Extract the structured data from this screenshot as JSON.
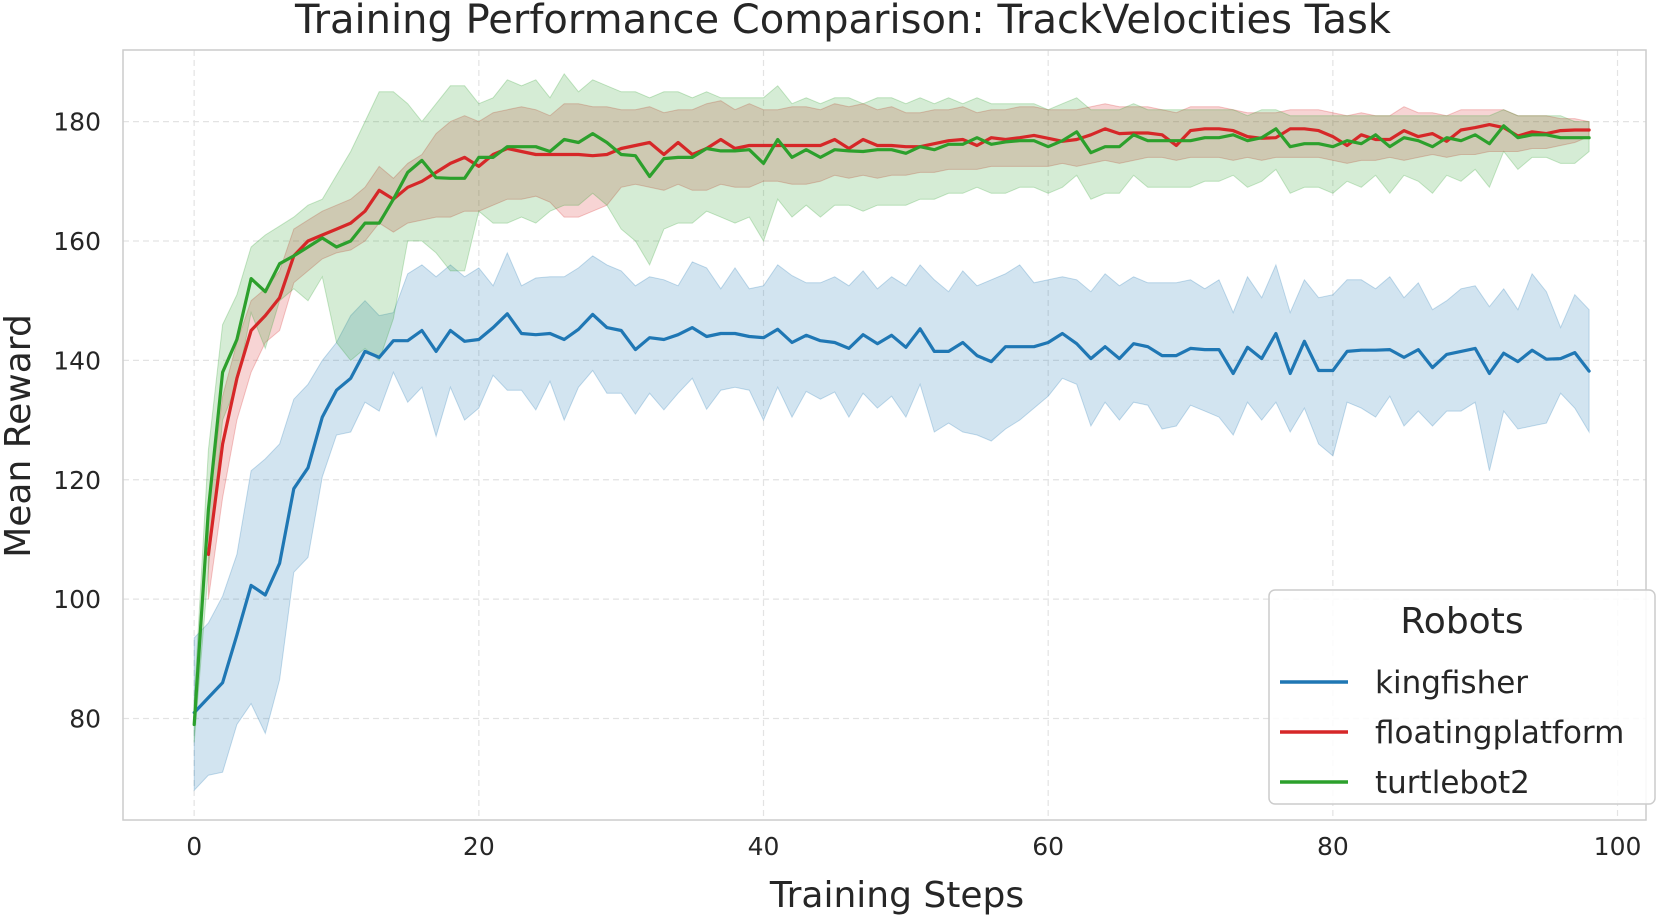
{
  "chart_data": {
    "type": "line",
    "title": "Training Performance Comparison: TrackVelocities Task",
    "xlabel": "Training Steps",
    "ylabel": "Mean Reward",
    "xlim": [
      -5,
      102
    ],
    "ylim": [
      63,
      192
    ],
    "xticks": [
      0,
      20,
      40,
      60,
      80,
      100
    ],
    "yticks": [
      80,
      100,
      120,
      140,
      160,
      180
    ],
    "grid": true,
    "legend": {
      "title": "Robots",
      "position": "lower-right"
    },
    "series": [
      {
        "name": "kingfisher",
        "color": "#1f77b4",
        "x_start": 0,
        "values": [
          81,
          83.5,
          86,
          94,
          102.3,
          100.7,
          106,
          118.5,
          122,
          130.5,
          135,
          137,
          141.5,
          140.5,
          143.3,
          143.3,
          145,
          141.5,
          145,
          143.2,
          143.5,
          145.5,
          147.8,
          144.5,
          144.3,
          144.5,
          143.5,
          145.2,
          147.7,
          145.5,
          145,
          141.8,
          143.8,
          143.5,
          144.3,
          145.5,
          144,
          144.5,
          144.5,
          144,
          143.8,
          145.2,
          143,
          144.2,
          143.3,
          143,
          142,
          144.3,
          142.8,
          144.2,
          142.2,
          145.3,
          141.5,
          141.5,
          143,
          140.8,
          139.8,
          142.3,
          142.3,
          142.3,
          143,
          144.5,
          142.8,
          140.3,
          142.3,
          140.3,
          142.8,
          142.3,
          140.8,
          140.8,
          142,
          141.8,
          141.8,
          137.8,
          142.2,
          140.3,
          144.5,
          137.8,
          143.2,
          138.3,
          138.3,
          141.5,
          141.7,
          141.7,
          141.8,
          140.5,
          141.8,
          138.8,
          141,
          141.5,
          142,
          137.8,
          141.2,
          139.8,
          141.7,
          140.2,
          140.3,
          141.3,
          138.2
        ],
        "lower": [
          68,
          70.5,
          71,
          79,
          82.5,
          77.5,
          86.5,
          104.5,
          107,
          120.5,
          127.5,
          128,
          133,
          131.5,
          138,
          133,
          135.5,
          127.3,
          135.5,
          130,
          132,
          137.5,
          135,
          135,
          131.7,
          136.5,
          130,
          135.5,
          138.3,
          134.5,
          134.5,
          131,
          134.5,
          131.7,
          134.5,
          137,
          131.8,
          135,
          135.5,
          135,
          130,
          135.5,
          130.5,
          134.8,
          133.5,
          134.7,
          130.5,
          134.5,
          132,
          134,
          130.5,
          136,
          128,
          129.5,
          128,
          127.5,
          126.5,
          128.5,
          130,
          132,
          134,
          137,
          136,
          129,
          133,
          130,
          133,
          132.5,
          128.5,
          129,
          132.5,
          131.5,
          130.5,
          127.5,
          133,
          130,
          133,
          128,
          132,
          126,
          124,
          133,
          132,
          130.5,
          134,
          129,
          131.5,
          129,
          131.5,
          131.5,
          133,
          121.5,
          131.5,
          128.5,
          129,
          129.5,
          134.5,
          132,
          128
        ],
        "upper": [
          93.5,
          96,
          100.5,
          107.5,
          121.5,
          123.5,
          126,
          133.5,
          136,
          140,
          143,
          147.5,
          150,
          147.5,
          148,
          154.5,
          156,
          154,
          156,
          154,
          155.5,
          152.5,
          158,
          152.5,
          153.8,
          154,
          154,
          155.5,
          157.5,
          156,
          155,
          152.5,
          154,
          153.5,
          152.5,
          156.5,
          155.5,
          152,
          155.5,
          152,
          152.5,
          156,
          154.2,
          153,
          153,
          154,
          152.5,
          155,
          152,
          154,
          152.5,
          156,
          153.5,
          151.5,
          155,
          152.5,
          153.5,
          154.5,
          156,
          153,
          153.5,
          154,
          153.5,
          151.5,
          154.5,
          152.5,
          154,
          153,
          153,
          153,
          153.5,
          152,
          153.5,
          148,
          154,
          150.5,
          156,
          148,
          153.5,
          150.5,
          151,
          153.5,
          153.5,
          152,
          154,
          150.5,
          153,
          148.5,
          150,
          152,
          152.5,
          149,
          152,
          148.5,
          154.5,
          151.5,
          145.5,
          151,
          148.5
        ]
      },
      {
        "name": "floatingplatform",
        "color": "#d62728",
        "x_start": 1,
        "values": [
          107.5,
          126,
          137,
          145,
          147.5,
          150.5,
          157.5,
          160,
          161,
          162,
          163,
          165,
          168.5,
          167,
          169,
          170,
          171.5,
          173,
          174,
          172.5,
          174.5,
          175.5,
          175,
          174.5,
          174.5,
          174.5,
          174.5,
          174.3,
          174.5,
          175.5,
          176,
          176.5,
          174.5,
          176.5,
          174.5,
          175.5,
          177,
          175.5,
          176,
          176,
          176,
          176,
          176,
          176,
          177,
          175.5,
          177,
          176,
          176,
          175.8,
          175.8,
          176.3,
          176.8,
          177,
          176,
          177.3,
          177,
          177.3,
          177.7,
          177.2,
          176.7,
          177,
          177.8,
          178.8,
          178,
          178.1,
          178.1,
          177.8,
          176,
          178.5,
          178.8,
          178.8,
          178.5,
          177.5,
          177.2,
          177.3,
          178.8,
          178.8,
          178.5,
          177.5,
          176,
          177.8,
          177,
          177,
          178.5,
          177.5,
          178,
          176.7,
          178.6,
          179,
          179.5,
          179,
          177.6,
          178.3,
          178,
          178.5,
          178.6,
          178.6
        ],
        "lower": [
          100,
          117,
          130,
          138,
          143,
          145,
          153,
          155,
          157,
          158,
          158.5,
          160,
          163,
          161.5,
          163,
          163.5,
          164,
          164,
          165,
          165,
          166,
          167,
          167,
          167.5,
          166.5,
          164,
          164,
          165,
          166,
          169,
          169.5,
          169,
          168.5,
          169.5,
          168.5,
          168.5,
          169.5,
          169,
          169,
          170,
          170,
          169.5,
          169.5,
          170,
          171,
          170.5,
          171,
          170.5,
          171,
          171,
          171.5,
          171.5,
          172,
          172,
          172,
          172.5,
          172.5,
          172.5,
          172.5,
          172.5,
          173,
          172.5,
          173,
          173.5,
          173,
          173.5,
          174,
          174,
          173.5,
          174,
          174,
          174,
          173.5,
          174,
          173.5,
          174,
          174,
          174,
          174,
          173.5,
          173,
          173.5,
          173.5,
          174,
          173.5,
          174,
          174.5,
          174,
          174.5,
          174.5,
          175,
          175,
          175,
          175.5,
          175.5,
          176,
          176.5,
          177.5
        ],
        "upper": [
          114.5,
          134,
          143,
          150,
          152,
          155,
          162,
          163.5,
          165,
          166,
          167,
          169,
          172.5,
          170.5,
          173,
          174.5,
          178,
          180,
          181,
          180,
          181.5,
          182,
          182.5,
          182,
          181,
          183,
          183,
          182.5,
          182.5,
          182,
          182,
          182.5,
          181.5,
          182,
          182,
          183,
          183.5,
          182,
          183,
          182,
          182,
          182.5,
          182.5,
          182,
          183,
          182.5,
          183,
          182,
          182.5,
          181.5,
          181.5,
          182,
          182,
          182.5,
          181.5,
          182,
          182,
          182.5,
          182.5,
          182,
          182,
          182,
          182.5,
          183,
          182.5,
          182.5,
          182.5,
          182,
          181.5,
          182.5,
          182.5,
          182.5,
          182,
          181.5,
          181.5,
          181.5,
          182,
          182,
          182,
          181.5,
          181,
          181.5,
          181,
          181,
          182.5,
          181.5,
          181.5,
          181,
          182,
          182,
          182,
          182,
          181,
          181,
          181,
          180.5,
          180.5,
          180
        ]
      },
      {
        "name": "turtlebot2",
        "color": "#2ca02c",
        "x_start": 0,
        "values": [
          79,
          115,
          138,
          143.5,
          153.7,
          151.5,
          156.2,
          157.5,
          159,
          160.5,
          159,
          160,
          163,
          163,
          167,
          171.5,
          173.5,
          170.6,
          170.5,
          170.5,
          174,
          174,
          175.8,
          175.8,
          175.8,
          175,
          177,
          176.5,
          178,
          176.5,
          174.5,
          174.3,
          170.8,
          173.8,
          174,
          174,
          175.5,
          175.1,
          175.1,
          175.3,
          173,
          177,
          174,
          175.3,
          174,
          175.3,
          175.1,
          175,
          175.3,
          175.3,
          174.7,
          175.8,
          175.3,
          176.2,
          176.2,
          177.3,
          176.2,
          176.6,
          176.8,
          176.8,
          175.8,
          176.8,
          178.3,
          174.8,
          175.8,
          175.8,
          177.8,
          176.8,
          176.8,
          176.8,
          176.8,
          177.3,
          177.3,
          177.8,
          176.8,
          177.3,
          178.8,
          175.8,
          176.3,
          176.3,
          175.8,
          176.8,
          176.3,
          177.8,
          175.8,
          177.3,
          176.8,
          175.8,
          177.3,
          176.8,
          177.8,
          176.3,
          179.3,
          177.3,
          177.8,
          177.8,
          177.3,
          177.3,
          177.3
        ],
        "lower": [
          76,
          105,
          130,
          136,
          148,
          142,
          150,
          152,
          150,
          154,
          143,
          140,
          142,
          140,
          147,
          160,
          160,
          158,
          155,
          155,
          165,
          163,
          163,
          164,
          163,
          165,
          166,
          166,
          168,
          166,
          162,
          160,
          156,
          162,
          163,
          163,
          165,
          164,
          163,
          164,
          160,
          167,
          164,
          166,
          164,
          166,
          166,
          165,
          166,
          166,
          166,
          167,
          167,
          168,
          168,
          169,
          168,
          168,
          169,
          169,
          168,
          169,
          171,
          167,
          168,
          168,
          171,
          169,
          169,
          169,
          169,
          170,
          170,
          171,
          169,
          170,
          172,
          168,
          169,
          169,
          168,
          170,
          169,
          171,
          168,
          171,
          170,
          168,
          171,
          170,
          172,
          169,
          175,
          172,
          174,
          174,
          173,
          173,
          175
        ],
        "upper": [
          83,
          125,
          146,
          151,
          159,
          161,
          162.5,
          164,
          166,
          167,
          171,
          175,
          180,
          185,
          185,
          183,
          180,
          183,
          186,
          186,
          183,
          184,
          187,
          186,
          187,
          184,
          188,
          185,
          187,
          186,
          185,
          185,
          184,
          185,
          185,
          184,
          185,
          184,
          184,
          184,
          184,
          186,
          183,
          184,
          183,
          184,
          184,
          183,
          184,
          184,
          183,
          184,
          183,
          184,
          183,
          184,
          183,
          183,
          183,
          183,
          182,
          183,
          184,
          182,
          182,
          182,
          183,
          182,
          182,
          182,
          182,
          182,
          182,
          182,
          181,
          182,
          182,
          181,
          181,
          181,
          181,
          181,
          181,
          181,
          181,
          181,
          181,
          181,
          181,
          181,
          181,
          181,
          182,
          181,
          181,
          181,
          181,
          180,
          180
        ]
      }
    ]
  }
}
